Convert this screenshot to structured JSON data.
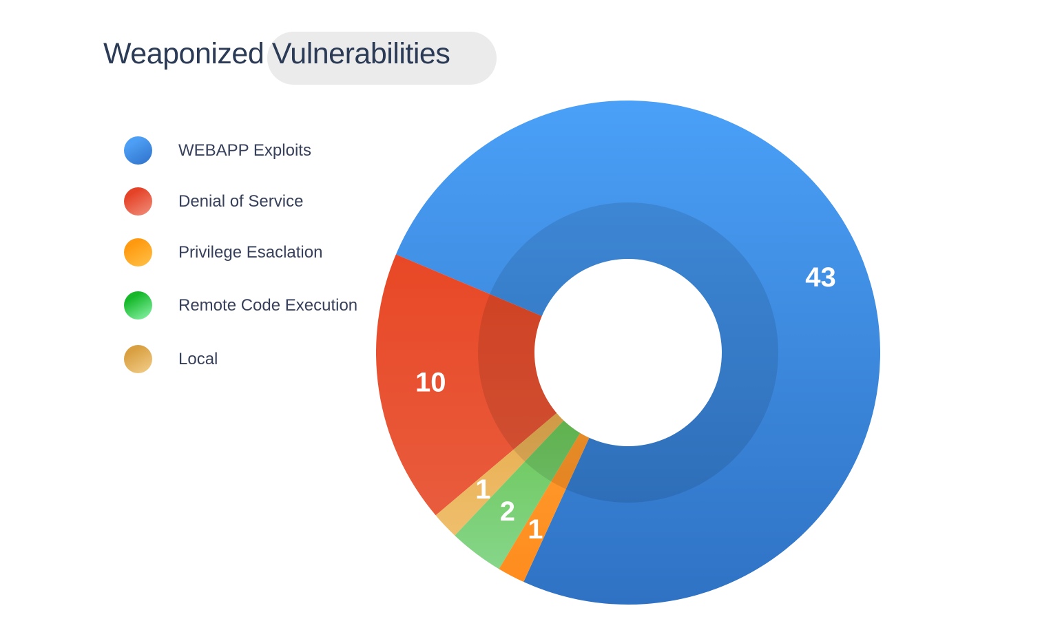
{
  "chart_data": {
    "type": "pie",
    "variant": "donut",
    "title": "Weaponized Vulnerabilities",
    "legend_position": "left",
    "categories": [
      "WEBAPP Exploits",
      "Denial of Service",
      "Privilege Esaclation",
      "Remote Code Execution",
      "Local"
    ],
    "values": [
      43,
      10,
      1,
      2,
      1
    ],
    "slice_order": [
      "WEBAPP Exploits",
      "Denial of Service",
      "Local",
      "Remote Code Execution",
      "Privilege Esaclation"
    ],
    "colors": {
      "WEBAPP Exploits": [
        "#4aa0f7",
        "#2f72c4"
      ],
      "Denial of Service": [
        "#e84826",
        "#e85c3d"
      ],
      "Privilege Esaclation": [
        "#ffa235",
        "#ff8c1e"
      ],
      "Remote Code Execution": [
        "#5fbf40",
        "#86d68a"
      ],
      "Local": [
        "#e3a33f",
        "#efbf6d"
      ]
    },
    "legend_dot_colors": {
      "WEBAPP Exploits": [
        "#4d9ff5",
        "#2f70c9"
      ],
      "Denial of Service": [
        "#e54328",
        "#f0907d"
      ],
      "Privilege Esaclation": [
        "#ff9a10",
        "#ffc24a"
      ],
      "Remote Code Execution": [
        "#16b82a",
        "#8ff5ae"
      ],
      "Local": [
        "#d9a042",
        "#f3cf8c"
      ]
    }
  }
}
